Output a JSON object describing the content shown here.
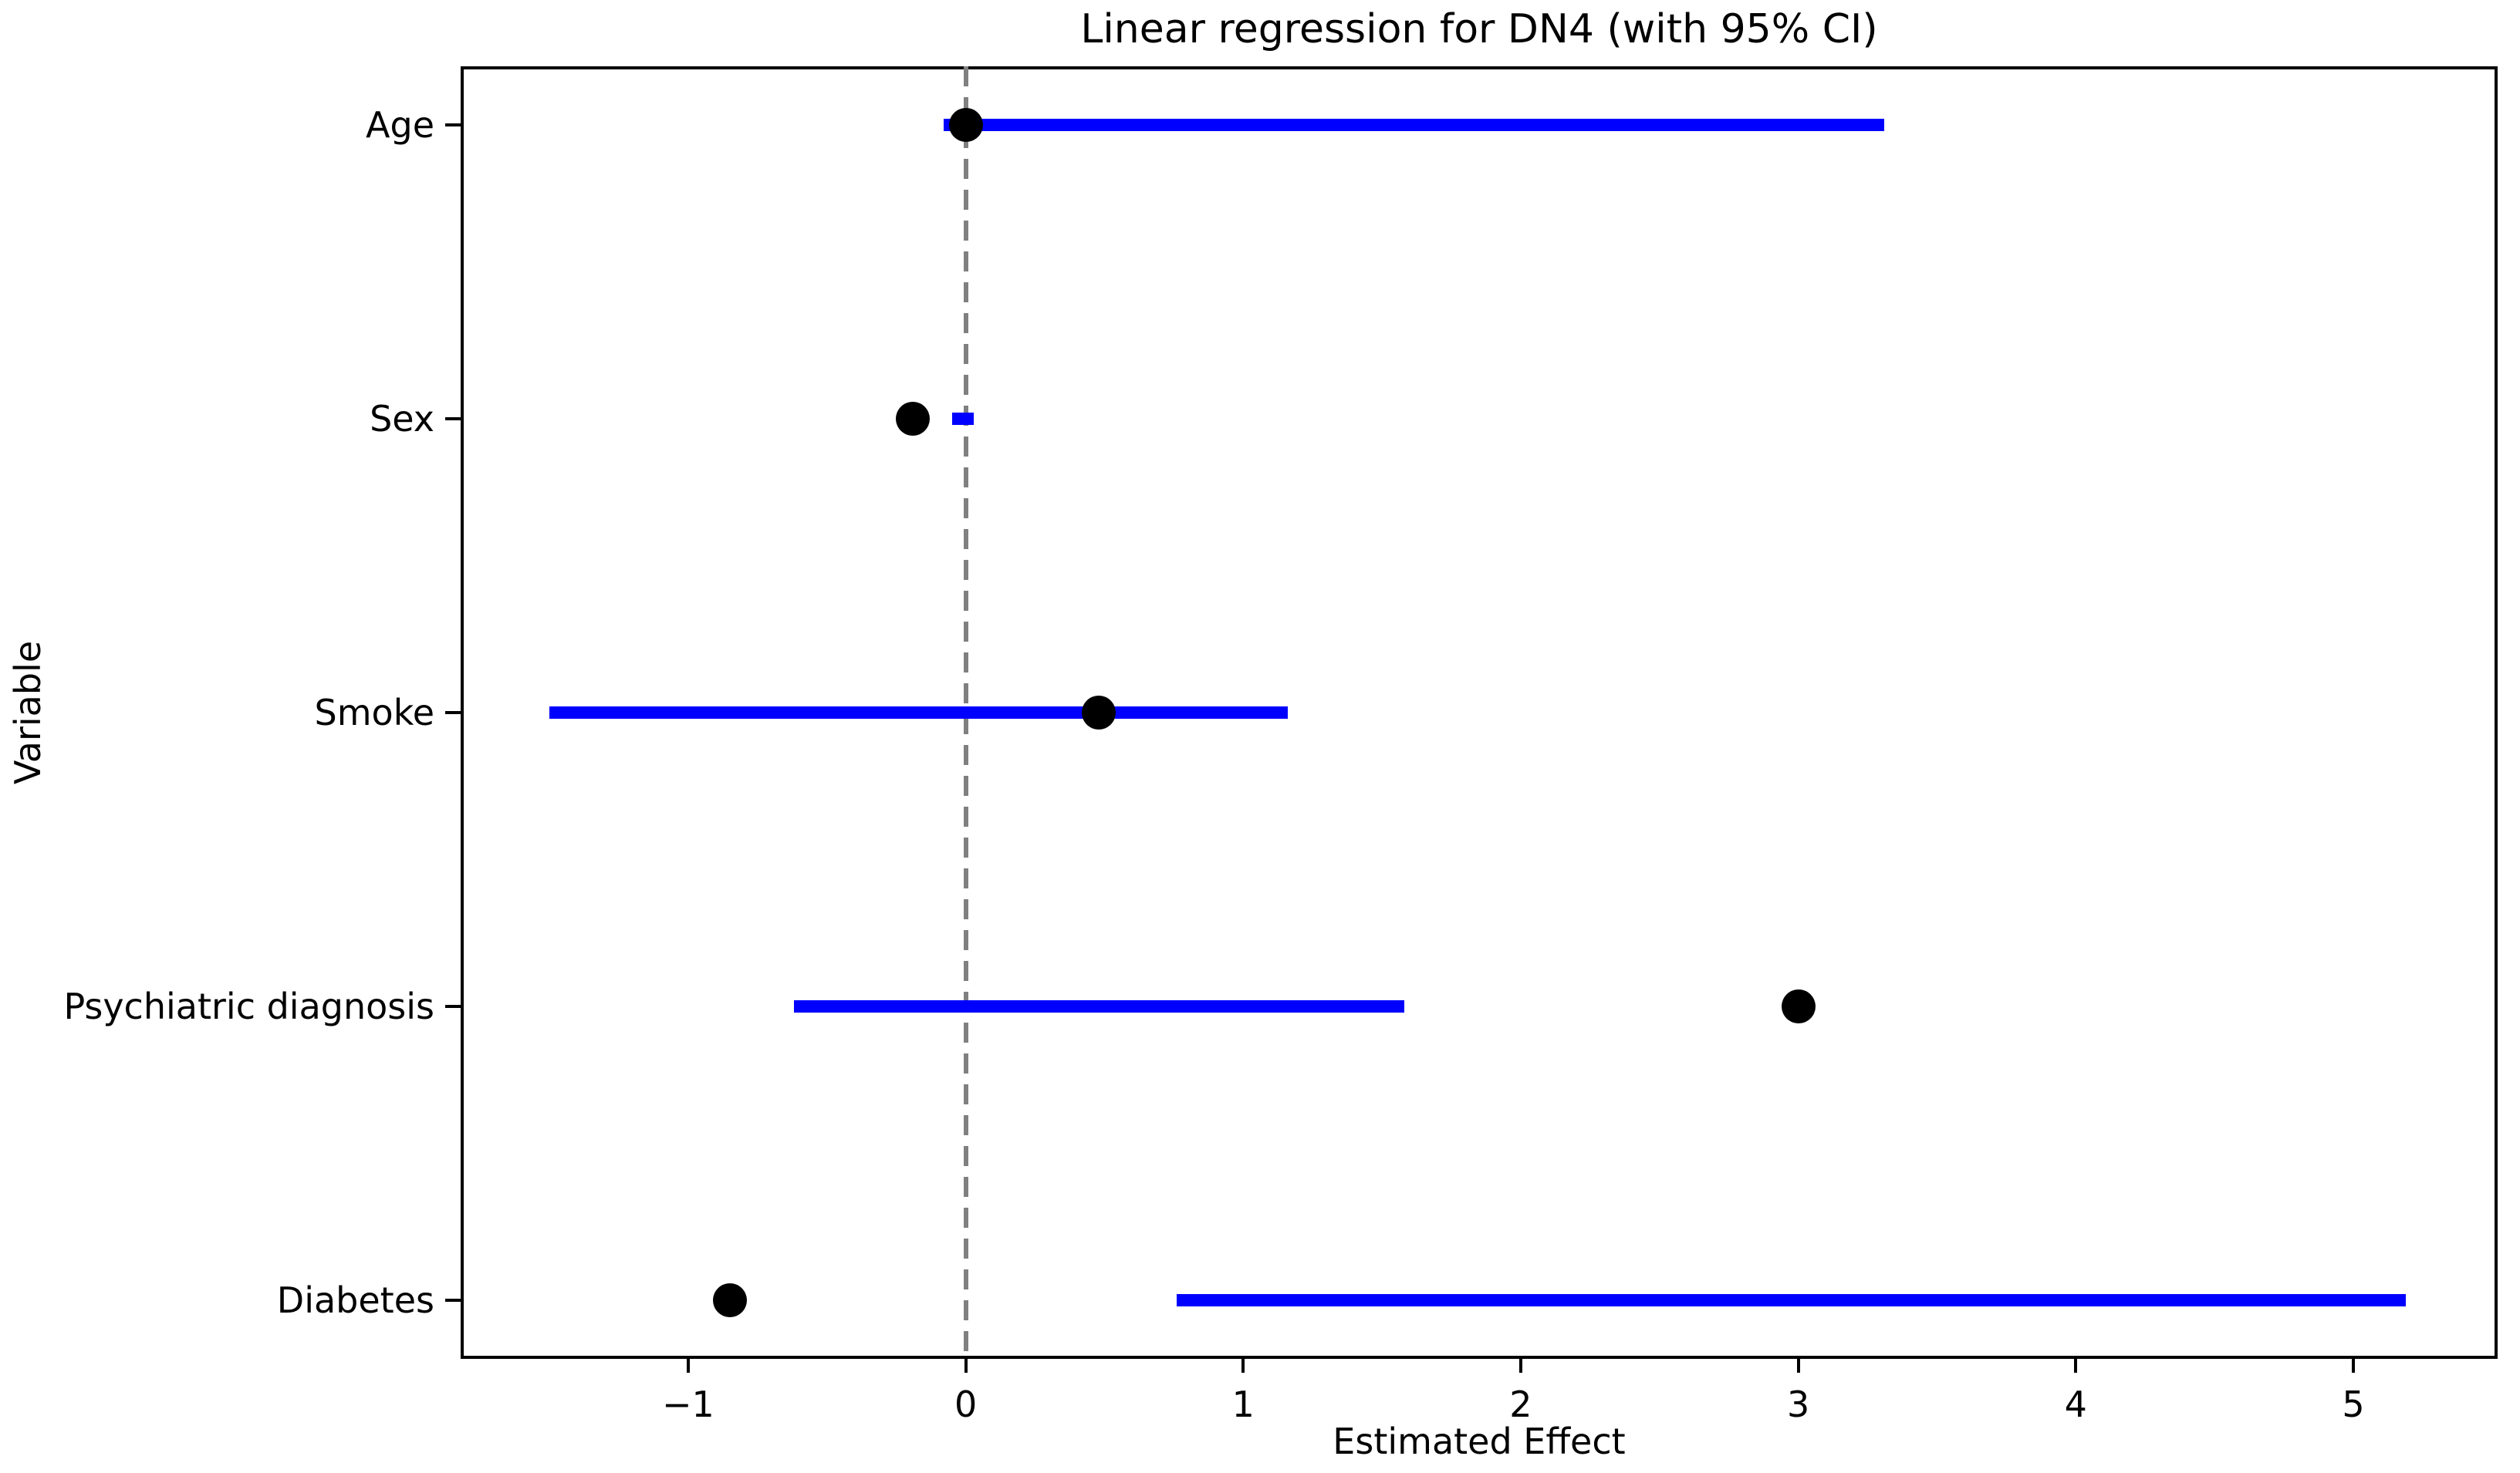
{
  "chart_data": {
    "type": "scatter",
    "subtype": "forest-plot-horizontal-95ci",
    "title": "Linear regression for DN4 (with 95% CI)",
    "xlabel": "Estimated Effect",
    "ylabel": "Variable",
    "grid": false,
    "legend": null,
    "categories": [
      "Age",
      "Sex",
      "Smoke",
      "Psychiatric diagnosis",
      "Diabetes"
    ],
    "series": [
      {
        "name": "point_estimate",
        "marker": "circle",
        "color": "#000000",
        "values": [
          0.0,
          -0.19,
          0.48,
          3.0,
          -0.85
        ]
      },
      {
        "name": "ci_95_interval",
        "style": "horizontal-bar",
        "color": "#0000ff",
        "intervals": [
          [
            -0.08,
            3.31
          ],
          [
            -0.05,
            0.03
          ],
          [
            -1.5,
            1.16
          ],
          [
            -0.62,
            1.58
          ],
          [
            0.76,
            5.19
          ]
        ]
      }
    ],
    "reference_line": {
      "x": 0,
      "style": "dashed",
      "color": "#808080"
    },
    "x_ticks": {
      "values": [
        -1,
        0,
        1,
        2,
        3,
        4,
        5
      ],
      "labels": [
        "−1",
        "0",
        "1",
        "2",
        "3",
        "4",
        "5"
      ]
    },
    "xlim": [
      -1.82,
      5.52
    ],
    "ylim": [
      -0.2,
      4.2
    ],
    "colors": {
      "ci": "#0000ff",
      "point": "#000000",
      "reference": "#808080",
      "spine": "#000000",
      "background": "#ffffff"
    }
  }
}
